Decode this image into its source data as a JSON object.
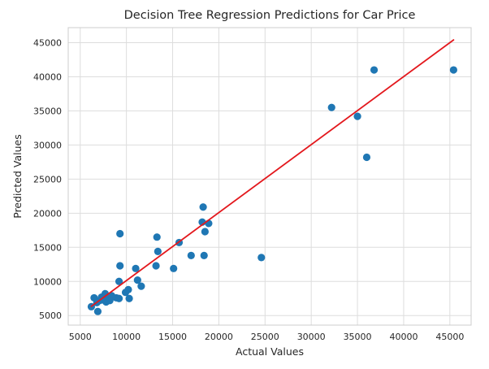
{
  "chart_data": {
    "type": "scatter",
    "title": "Decision Tree Regression Predictions for Car Price",
    "xlabel": "Actual Values",
    "ylabel": "Predicted Values",
    "xlim": [
      3700,
      47300
    ],
    "ylim": [
      3600,
      47200
    ],
    "x_ticks": [
      5000,
      10000,
      15000,
      20000,
      25000,
      30000,
      35000,
      40000,
      45000
    ],
    "y_ticks": [
      5000,
      10000,
      15000,
      20000,
      25000,
      30000,
      35000,
      40000,
      45000
    ],
    "grid": true,
    "series": [
      {
        "kind": "points",
        "color": "#1f77b4",
        "points": [
          [
            6200,
            6300
          ],
          [
            6500,
            7600
          ],
          [
            6800,
            6900
          ],
          [
            6900,
            5600
          ],
          [
            7100,
            7200
          ],
          [
            7300,
            7700
          ],
          [
            7500,
            7300
          ],
          [
            7700,
            8200
          ],
          [
            7800,
            7000
          ],
          [
            8000,
            7700
          ],
          [
            8200,
            7200
          ],
          [
            8400,
            7900
          ],
          [
            8900,
            7600
          ],
          [
            9200,
            7500
          ],
          [
            9200,
            10000
          ],
          [
            9300,
            12300
          ],
          [
            9300,
            17000
          ],
          [
            9900,
            8400
          ],
          [
            10200,
            8800
          ],
          [
            10300,
            7500
          ],
          [
            11000,
            11900
          ],
          [
            11200,
            10200
          ],
          [
            11600,
            9300
          ],
          [
            13200,
            12300
          ],
          [
            13300,
            16500
          ],
          [
            13400,
            14400
          ],
          [
            15100,
            11900
          ],
          [
            15700,
            15700
          ],
          [
            17000,
            13800
          ],
          [
            18200,
            18700
          ],
          [
            18300,
            20900
          ],
          [
            18400,
            13800
          ],
          [
            18500,
            17300
          ],
          [
            18900,
            18500
          ],
          [
            24600,
            13500
          ],
          [
            32200,
            35500
          ],
          [
            35000,
            34200
          ],
          [
            36000,
            28200
          ],
          [
            36800,
            41000
          ],
          [
            45400,
            41000
          ]
        ]
      },
      {
        "kind": "fit-line",
        "color": "#e3181d",
        "x": [
          6200,
          45400
        ],
        "y": [
          6350,
          45400
        ]
      }
    ]
  }
}
